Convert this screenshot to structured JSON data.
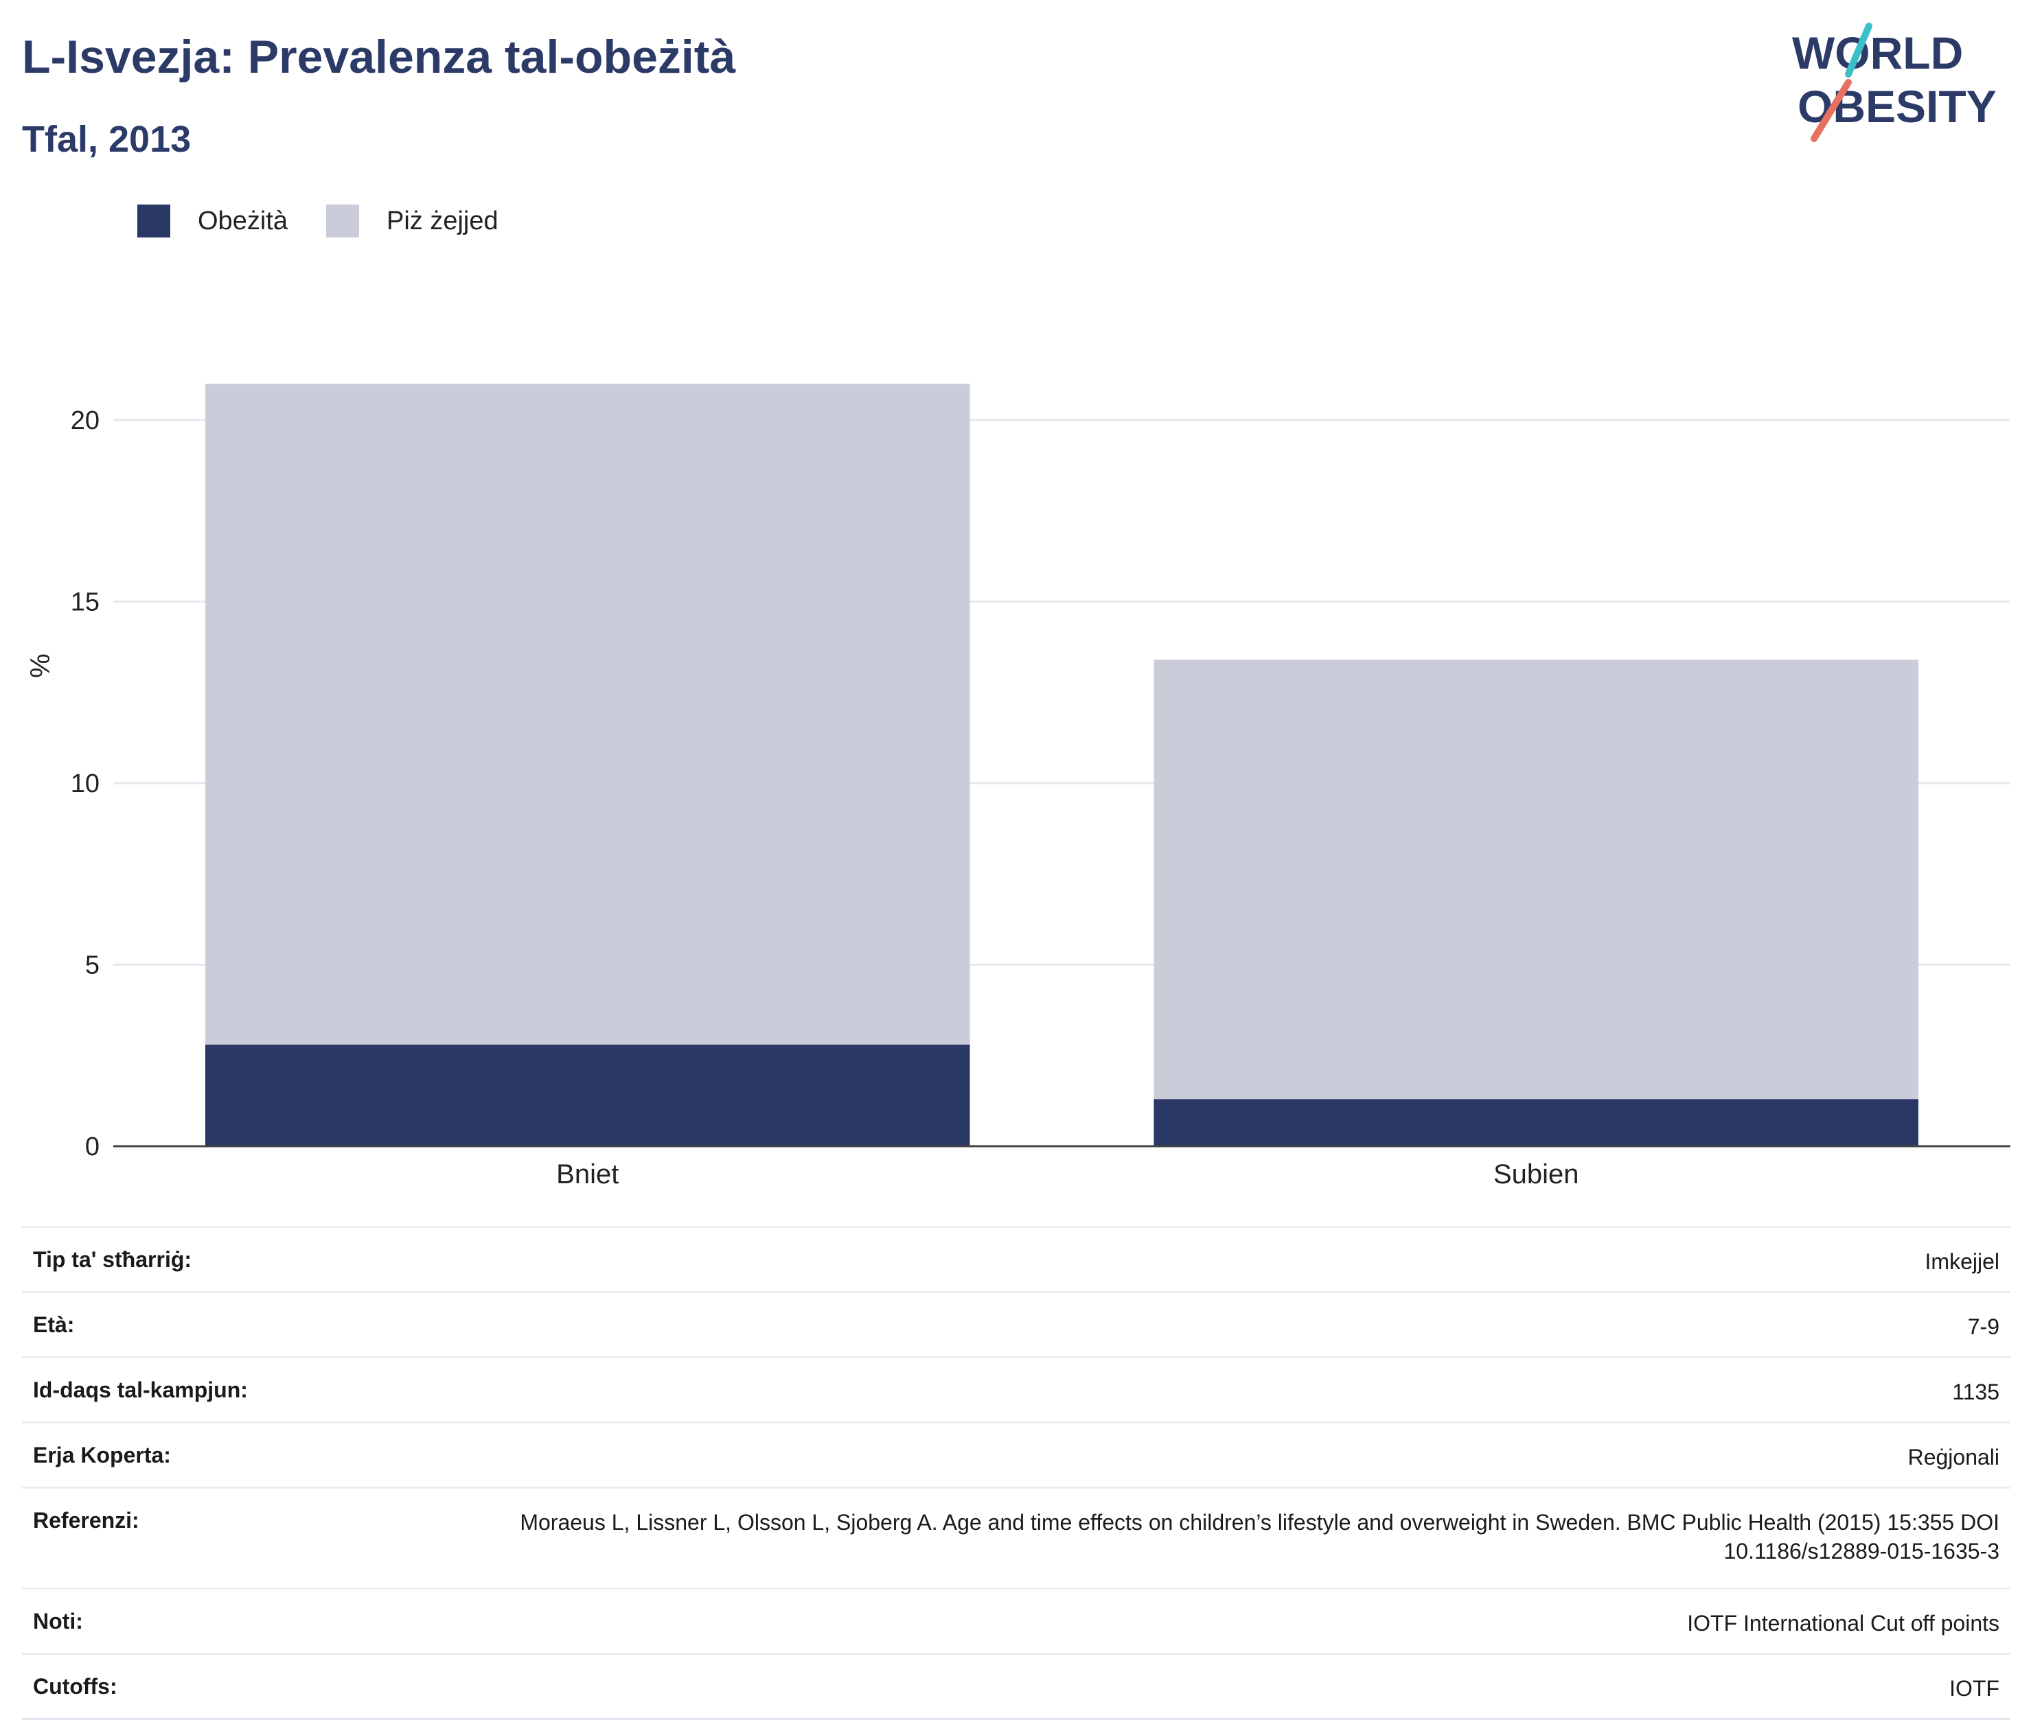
{
  "header": {
    "title": "L-Isvezja: Prevalenza tal-obeżità",
    "subtitle": "Tfal, 2013"
  },
  "logo": {
    "line1": "WORLD",
    "line2": "OBESITY",
    "colors": {
      "text": "#2b3a67",
      "slash_top": "#3bbfc9",
      "slash_bottom": "#e8705f"
    }
  },
  "legend": [
    {
      "label": "Obeżità",
      "color": "#2b3765"
    },
    {
      "label": "Piż żejjed",
      "color": "#cacdd9"
    }
  ],
  "chart_data": {
    "type": "bar",
    "stacked": true,
    "title": "L-Isvezja: Prevalenza tal-obeżità",
    "subtitle": "Tfal, 2013",
    "xlabel": "",
    "ylabel": "%",
    "categories": [
      "Bniet",
      "Subien"
    ],
    "series": [
      {
        "name": "Obeżità",
        "color": "#2b3765",
        "values": [
          2.8,
          1.3
        ]
      },
      {
        "name": "Piż żejjed",
        "color": "#cacdd9",
        "values": [
          18.2,
          12.1
        ]
      }
    ],
    "ylim": [
      0,
      21
    ],
    "yticks": [
      0,
      5,
      10,
      15,
      20
    ],
    "grid": true,
    "legend_position": "top-left"
  },
  "meta": [
    {
      "key": "Tip ta' stħarriġ:",
      "value": "Imkejjel"
    },
    {
      "key": "Età:",
      "value": "7-9"
    },
    {
      "key": "Id-daqs tal-kampjun:",
      "value": "1135"
    },
    {
      "key": "Erja Koperta:",
      "value": "Reġjonali"
    },
    {
      "key": "Referenzi:",
      "value": "Moraeus L, Lissner L, Olsson L, Sjoberg A. Age and time effects on children’s lifestyle and overweight in Sweden. BMC Public Health (2015) 15:355 DOI 10.1186/s12889-015-1635-3"
    },
    {
      "key": "Noti:",
      "value": "IOTF International Cut off points"
    },
    {
      "key": "Cutoffs:",
      "value": "IOTF"
    }
  ]
}
